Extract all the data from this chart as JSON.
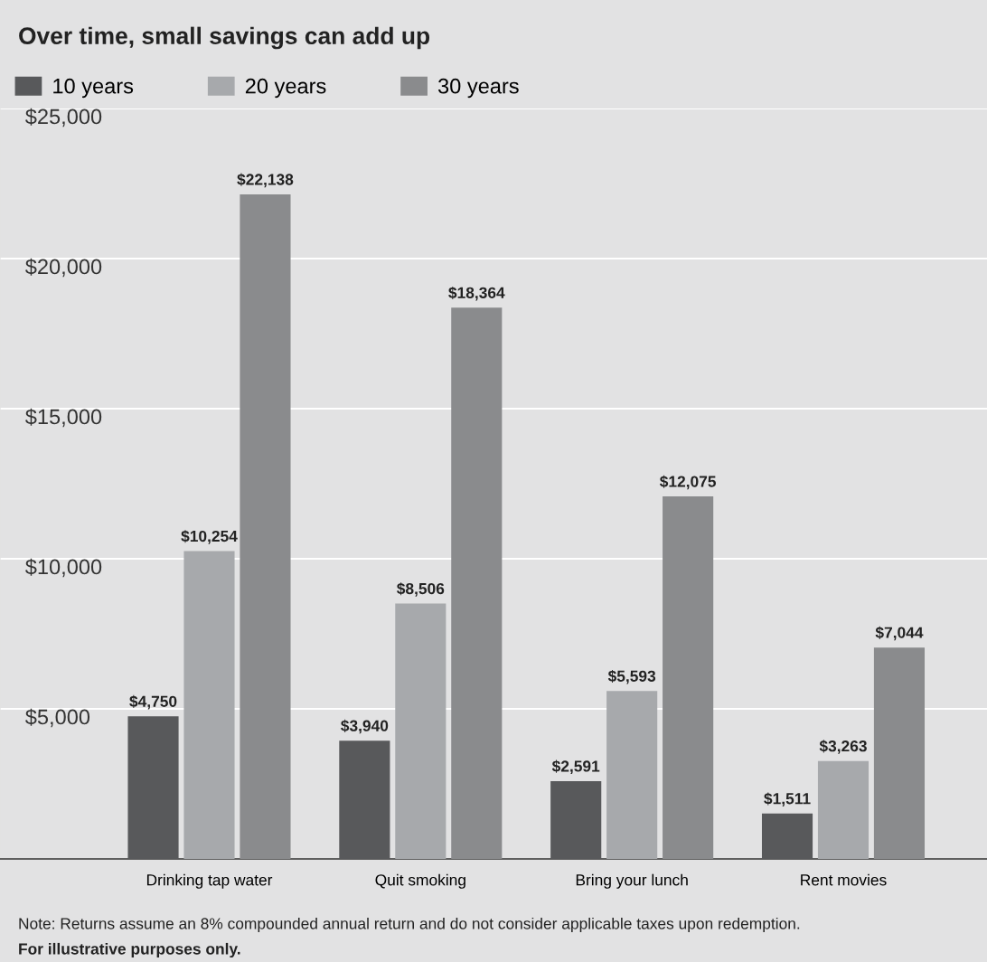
{
  "chart_data": {
    "type": "bar",
    "title": "Over time, small savings can add up",
    "categories": [
      "Drinking tap water",
      "Quit smoking",
      "Bring your lunch",
      "Rent movies"
    ],
    "series": [
      {
        "name": "10 years",
        "color": "#58595b",
        "values": [
          4750,
          3940,
          2591,
          1511
        ]
      },
      {
        "name": "20 years",
        "color": "#a7a9ac",
        "values": [
          10254,
          8506,
          5593,
          3263
        ]
      },
      {
        "name": "30 years",
        "color": "#8a8b8d",
        "values": [
          22138,
          18364,
          12075,
          7044
        ]
      }
    ],
    "value_labels": [
      [
        "$4,750",
        "$3,940",
        "$2,591",
        "$1,511"
      ],
      [
        "$10,254",
        "$8,506",
        "$5,593",
        "$3,263"
      ],
      [
        "$22,138",
        "$18,364",
        "$12,075",
        "$7,044"
      ]
    ],
    "ylim": [
      0,
      25000
    ],
    "yticks": [
      {
        "value": 5000,
        "label": "$5,000"
      },
      {
        "value": 10000,
        "label": "$10,000"
      },
      {
        "value": 15000,
        "label": "$15,000"
      },
      {
        "value": 20000,
        "label": "$20,000"
      },
      {
        "value": 25000,
        "label": "$25,000"
      }
    ],
    "grid": "y",
    "legend": "top left",
    "annotations": [
      "Note: Returns assume an 8% compounded annual return and do not consider applicable taxes upon redemption.",
      "For illustrative purposes only."
    ]
  }
}
